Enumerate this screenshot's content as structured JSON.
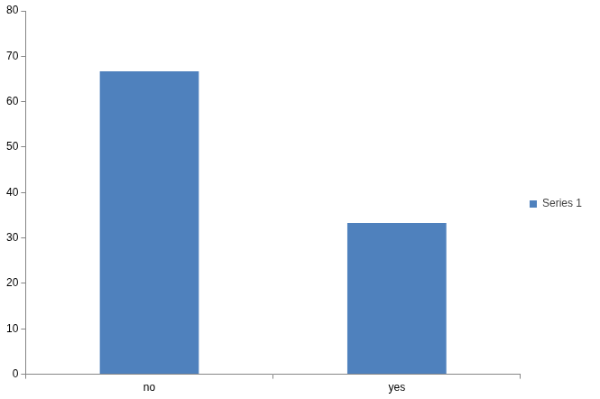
{
  "chart_data": {
    "type": "bar",
    "categories": [
      "no",
      "yes"
    ],
    "series": [
      {
        "name": "Series 1",
        "color": "#4f81bd",
        "values": [
          66.7,
          33.3
        ]
      }
    ],
    "ylim": [
      0,
      80
    ],
    "yticks": [
      0,
      10,
      20,
      30,
      40,
      50,
      60,
      70,
      80
    ],
    "grid": false,
    "legend": "right"
  }
}
